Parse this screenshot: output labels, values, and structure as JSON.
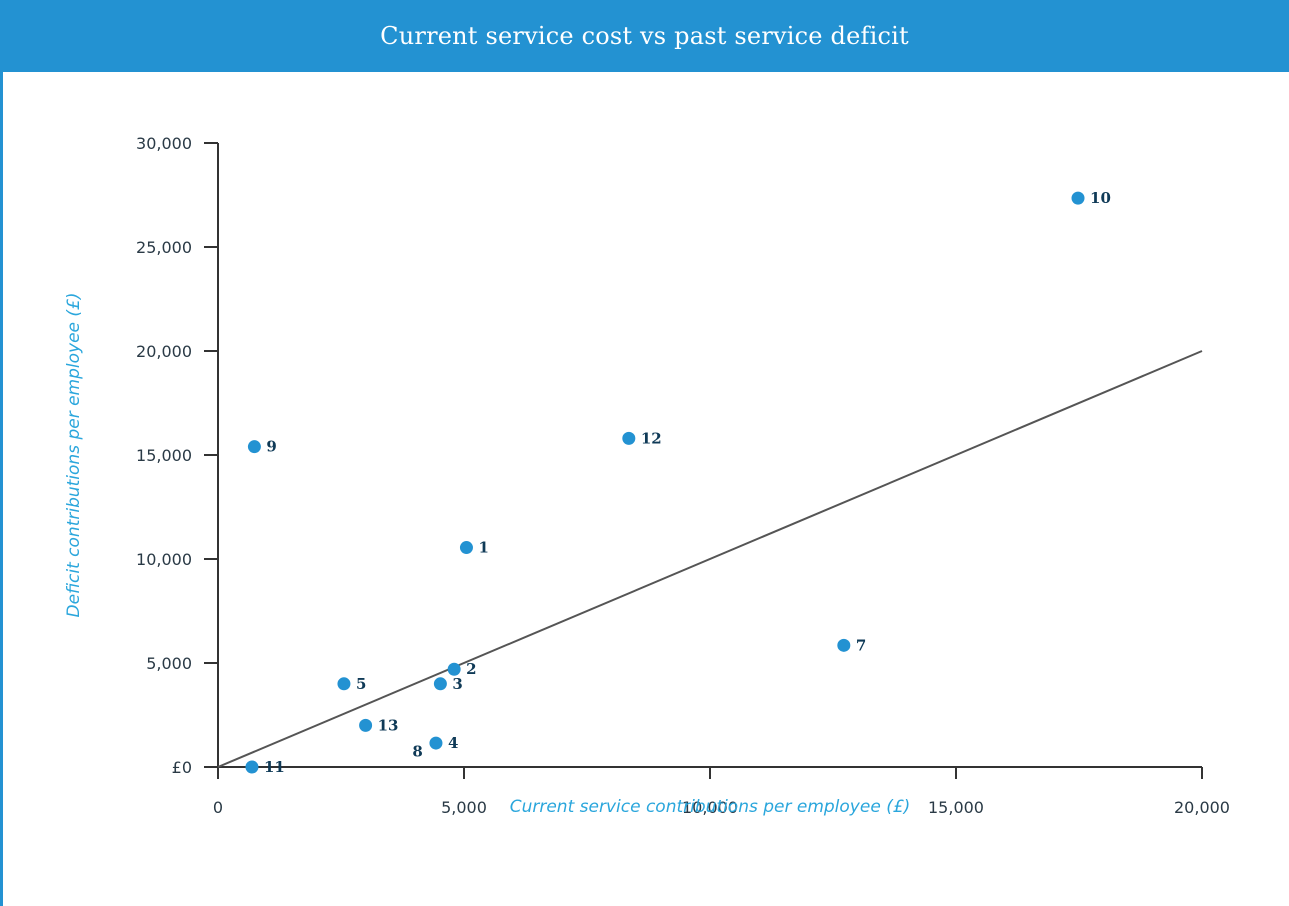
{
  "chart_data": {
    "type": "scatter",
    "title": "Current service cost vs past service deficit",
    "xlabel": "Current service contributions per employee (£)",
    "ylabel": "Deficit contributions per employee (£)",
    "xlim": [
      0,
      20000
    ],
    "ylim": [
      0,
      30000
    ],
    "x_ticks": [
      0,
      5000,
      10000,
      15000,
      20000
    ],
    "x_tick_labels": [
      "0",
      "5,000",
      "10,000",
      "15,000",
      "20,000"
    ],
    "y_ticks": [
      0,
      5000,
      10000,
      15000,
      20000,
      25000,
      30000
    ],
    "y_tick_labels": [
      "£0",
      "5,000",
      "10,000",
      "15,000",
      "20,000",
      "25,000",
      "30,000"
    ],
    "grid": false,
    "reference_line": {
      "from": [
        0,
        0
      ],
      "to": [
        20000,
        20000
      ]
    },
    "points": [
      {
        "label": "1",
        "x": 5050,
        "y": 10550
      },
      {
        "label": "2",
        "x": 4800,
        "y": 4700
      },
      {
        "label": "3",
        "x": 4520,
        "y": 4000
      },
      {
        "label": "4",
        "x": 4430,
        "y": 1150
      },
      {
        "label": "5",
        "x": 2560,
        "y": 4000
      },
      {
        "label": "7",
        "x": 12720,
        "y": 5850
      },
      {
        "label": "9",
        "x": 740,
        "y": 15400
      },
      {
        "label": "10",
        "x": 17480,
        "y": 27350
      },
      {
        "label": "11",
        "x": 690,
        "y": 0
      },
      {
        "label": "12",
        "x": 8350,
        "y": 15800
      },
      {
        "label": "13",
        "x": 3000,
        "y": 2000
      }
    ],
    "extra_labels": [
      {
        "label": "8",
        "x": 3950,
        "y": 750
      }
    ],
    "colors": {
      "point": "#2392d2",
      "line": "#555555",
      "axis": "#333333",
      "header": "#2392d2"
    }
  }
}
